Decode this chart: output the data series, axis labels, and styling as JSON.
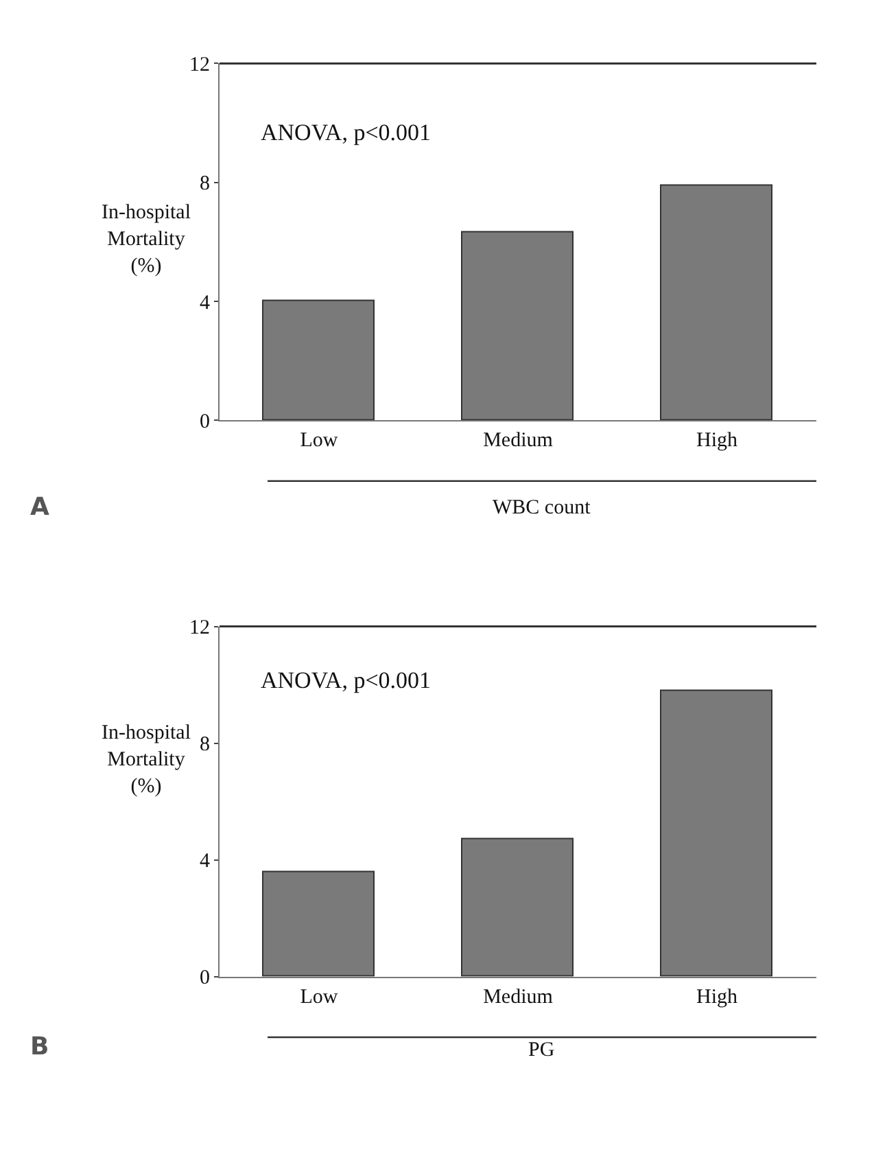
{
  "chart_data": [
    {
      "type": "bar",
      "ylabel": "In-hospital Mortality (%)",
      "xlabel": "WBC count",
      "categories": [
        "Low",
        "Medium",
        "High"
      ],
      "values": [
        4.0,
        6.3,
        7.9
      ],
      "color": "#7a7a7a",
      "ylim": [
        0,
        12
      ],
      "yticks": [
        0,
        4,
        8,
        12
      ],
      "annotations": [
        "ANOVA, p<0.001",
        "A"
      ]
    },
    {
      "type": "bar",
      "ylabel": "In-hospital Mortality (%)",
      "xlabel": "PG",
      "categories": [
        "Low",
        "Medium",
        "High"
      ],
      "values": [
        3.6,
        4.7,
        9.8
      ],
      "color": "#7a7a7a",
      "ylim": [
        0,
        12
      ],
      "yticks": [
        0,
        4,
        8,
        12
      ],
      "annotations": [
        "ANOVA, p<0.001",
        "B"
      ]
    }
  ]
}
